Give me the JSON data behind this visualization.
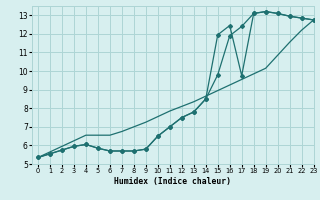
{
  "xlabel": "Humidex (Indice chaleur)",
  "xlim": [
    -0.5,
    23
  ],
  "ylim": [
    5,
    13.5
  ],
  "xticks": [
    0,
    1,
    2,
    3,
    4,
    5,
    6,
    7,
    8,
    9,
    10,
    11,
    12,
    13,
    14,
    15,
    16,
    17,
    18,
    19,
    20,
    21,
    22,
    23
  ],
  "yticks": [
    5,
    6,
    7,
    8,
    9,
    10,
    11,
    12,
    13
  ],
  "bg_color": "#d7efef",
  "grid_color": "#add5d5",
  "line_color": "#1e7070",
  "line1_x": [
    0,
    1,
    2,
    3,
    4,
    5,
    6,
    7,
    8,
    9,
    10,
    11,
    12,
    13,
    14,
    15,
    16,
    17,
    18,
    19,
    20,
    21,
    22,
    23
  ],
  "line1_y": [
    5.35,
    5.65,
    5.95,
    6.25,
    6.55,
    6.55,
    6.55,
    6.75,
    7.0,
    7.25,
    7.55,
    7.85,
    8.1,
    8.35,
    8.65,
    8.95,
    9.25,
    9.55,
    9.85,
    10.15,
    10.85,
    11.55,
    12.2,
    12.75
  ],
  "line2_x": [
    0,
    1,
    2,
    3,
    4,
    5,
    6,
    7,
    8,
    9,
    10,
    11,
    12,
    13,
    14,
    15,
    16,
    17,
    18,
    19,
    20,
    21,
    22,
    23
  ],
  "line2_y": [
    5.35,
    5.55,
    5.75,
    5.95,
    6.05,
    5.85,
    5.7,
    5.7,
    5.7,
    5.8,
    6.5,
    7.0,
    7.5,
    7.8,
    8.5,
    9.8,
    11.9,
    12.4,
    13.1,
    13.2,
    13.1,
    12.95,
    12.85,
    12.75
  ],
  "line3_x": [
    0,
    1,
    2,
    3,
    4,
    5,
    6,
    7,
    8,
    9,
    10,
    11,
    12,
    13,
    14,
    15,
    16,
    17,
    18,
    19,
    20,
    21,
    22,
    23
  ],
  "line3_y": [
    5.35,
    5.55,
    5.75,
    5.95,
    6.05,
    5.85,
    5.7,
    5.7,
    5.7,
    5.8,
    6.5,
    7.0,
    7.5,
    7.8,
    8.5,
    11.95,
    12.45,
    9.75,
    13.1,
    13.2,
    13.1,
    12.95,
    12.85,
    12.75
  ]
}
